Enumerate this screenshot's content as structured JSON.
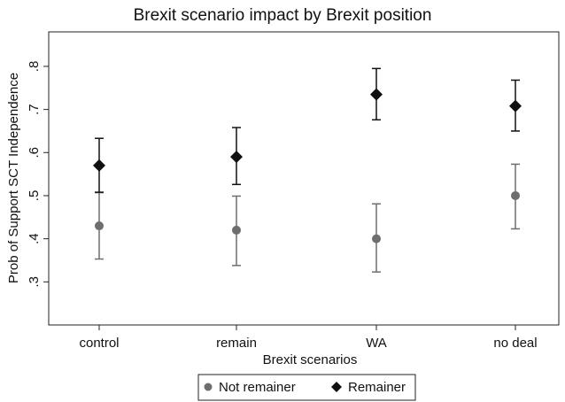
{
  "chart_data": {
    "type": "scatter",
    "title": "Brexit scenario impact by Brexit position",
    "xlabel": "Brexit scenarios",
    "ylabel": "Prob of Support SCT Independence",
    "categories": [
      "control",
      "remain",
      "WA",
      "no deal"
    ],
    "yticks": [
      ".3",
      ".4",
      ".5",
      ".6",
      ".7",
      ".8"
    ],
    "ytick_values": [
      0.3,
      0.4,
      0.5,
      0.6,
      0.7,
      0.8
    ],
    "ylim": [
      0.2,
      0.88
    ],
    "grid": false,
    "legend_position": "bottom",
    "series": [
      {
        "name": "Not remainer",
        "marker": "circle",
        "color": "#6e6e6e",
        "values": [
          0.43,
          0.42,
          0.4,
          0.5
        ],
        "ci_low": [
          0.353,
          0.338,
          0.323,
          0.423
        ],
        "ci_high": [
          0.507,
          0.499,
          0.481,
          0.573
        ]
      },
      {
        "name": "Remainer",
        "marker": "diamond",
        "color": "#111111",
        "values": [
          0.57,
          0.59,
          0.735,
          0.708
        ],
        "ci_low": [
          0.508,
          0.526,
          0.676,
          0.65
        ],
        "ci_high": [
          0.633,
          0.658,
          0.795,
          0.768
        ]
      }
    ]
  }
}
